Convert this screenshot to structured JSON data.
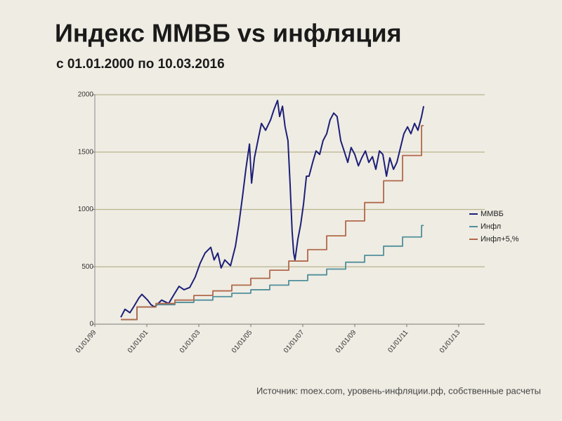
{
  "chart_data": {
    "type": "line",
    "title": "Индекс ММВБ vs инфляция",
    "subtitle": "с 01.01.2000 по 10.03.2016",
    "source": "Источник: moex.com, уровень-инфляции.рф, собственные расчеты",
    "xlim": [
      1999,
      2014
    ],
    "xticks": [
      {
        "value": 1999,
        "label": "01/01/99"
      },
      {
        "value": 2001,
        "label": "01/01/01"
      },
      {
        "value": 2003,
        "label": "01/01/03"
      },
      {
        "value": 2005,
        "label": "01/01/05"
      },
      {
        "value": 2007,
        "label": "01/01/07"
      },
      {
        "value": 2009,
        "label": "01/01/09"
      },
      {
        "value": 2011,
        "label": "01/01/11"
      },
      {
        "value": 2013,
        "label": "01/01/13"
      }
    ],
    "ylim": [
      0,
      2000
    ],
    "yticks": [
      0,
      500,
      1000,
      1500,
      2000
    ],
    "grid": true,
    "legend": "right",
    "series": [
      {
        "name": "ММВБ",
        "color": "#1c1f78",
        "x": [
          2000.0,
          2000.16,
          2000.35,
          2000.49,
          2000.7,
          2000.81,
          2001.03,
          2001.16,
          2001.3,
          2001.57,
          2001.84,
          2002.05,
          2002.24,
          2002.43,
          2002.65,
          2002.86,
          2003.05,
          2003.24,
          2003.46,
          2003.59,
          2003.73,
          2003.86,
          2004.0,
          2004.22,
          2004.41,
          2004.54,
          2004.68,
          2004.81,
          2004.95,
          2005.03,
          2005.14,
          2005.3,
          2005.41,
          2005.57,
          2005.76,
          2005.89,
          2006.03,
          2006.11,
          2006.22,
          2006.32,
          2006.43,
          2006.51,
          2006.59,
          2006.65,
          2006.7,
          2006.81,
          2006.92,
          2007.03,
          2007.14,
          2007.24,
          2007.38,
          2007.51,
          2007.65,
          2007.78,
          2007.92,
          2008.05,
          2008.19,
          2008.32,
          2008.46,
          2008.59,
          2008.73,
          2008.86,
          2009.0,
          2009.14,
          2009.27,
          2009.41,
          2009.54,
          2009.68,
          2009.81,
          2009.95,
          2010.08,
          2010.22,
          2010.35,
          2010.49,
          2010.62,
          2010.76,
          2010.89,
          2011.03,
          2011.16,
          2011.3,
          2011.43,
          2011.57,
          2011.65
        ],
        "values": [
          60,
          130,
          100,
          150,
          230,
          260,
          210,
          170,
          150,
          210,
          180,
          260,
          330,
          300,
          320,
          410,
          530,
          620,
          670,
          560,
          620,
          490,
          560,
          510,
          680,
          870,
          1110,
          1350,
          1570,
          1230,
          1450,
          1630,
          1750,
          1690,
          1780,
          1870,
          1950,
          1810,
          1900,
          1720,
          1600,
          1230,
          810,
          620,
          560,
          740,
          870,
          1050,
          1290,
          1290,
          1410,
          1510,
          1480,
          1600,
          1660,
          1780,
          1840,
          1810,
          1600,
          1510,
          1410,
          1540,
          1480,
          1380,
          1450,
          1510,
          1410,
          1460,
          1350,
          1510,
          1480,
          1290,
          1450,
          1350,
          1410,
          1540,
          1660,
          1720,
          1660,
          1750,
          1690,
          1810,
          1900
        ]
      },
      {
        "name": "Инфл",
        "color": "#4f8f9c",
        "drawstyle": "steps-post",
        "x": [
          2000.0,
          2000.62,
          2001.35,
          2002.08,
          2002.81,
          2003.54,
          2004.27,
          2005.0,
          2005.73,
          2006.46,
          2007.19,
          2007.92,
          2008.65,
          2009.38,
          2010.11,
          2010.84,
          2011.57,
          2011.65
        ],
        "values": [
          40,
          150,
          170,
          190,
          210,
          240,
          270,
          300,
          340,
          380,
          430,
          480,
          540,
          600,
          680,
          760,
          860,
          860
        ]
      },
      {
        "name": "Инфл+5,%",
        "color": "#b0684a",
        "drawstyle": "steps-post",
        "x": [
          2000.0,
          2000.62,
          2001.35,
          2002.08,
          2002.81,
          2003.54,
          2004.27,
          2005.0,
          2005.73,
          2006.46,
          2007.19,
          2007.92,
          2008.65,
          2009.38,
          2010.11,
          2010.84,
          2011.57,
          2011.65
        ],
        "values": [
          40,
          150,
          180,
          210,
          250,
          290,
          340,
          400,
          470,
          550,
          650,
          770,
          900,
          1060,
          1250,
          1470,
          1730,
          1730
        ]
      }
    ]
  }
}
